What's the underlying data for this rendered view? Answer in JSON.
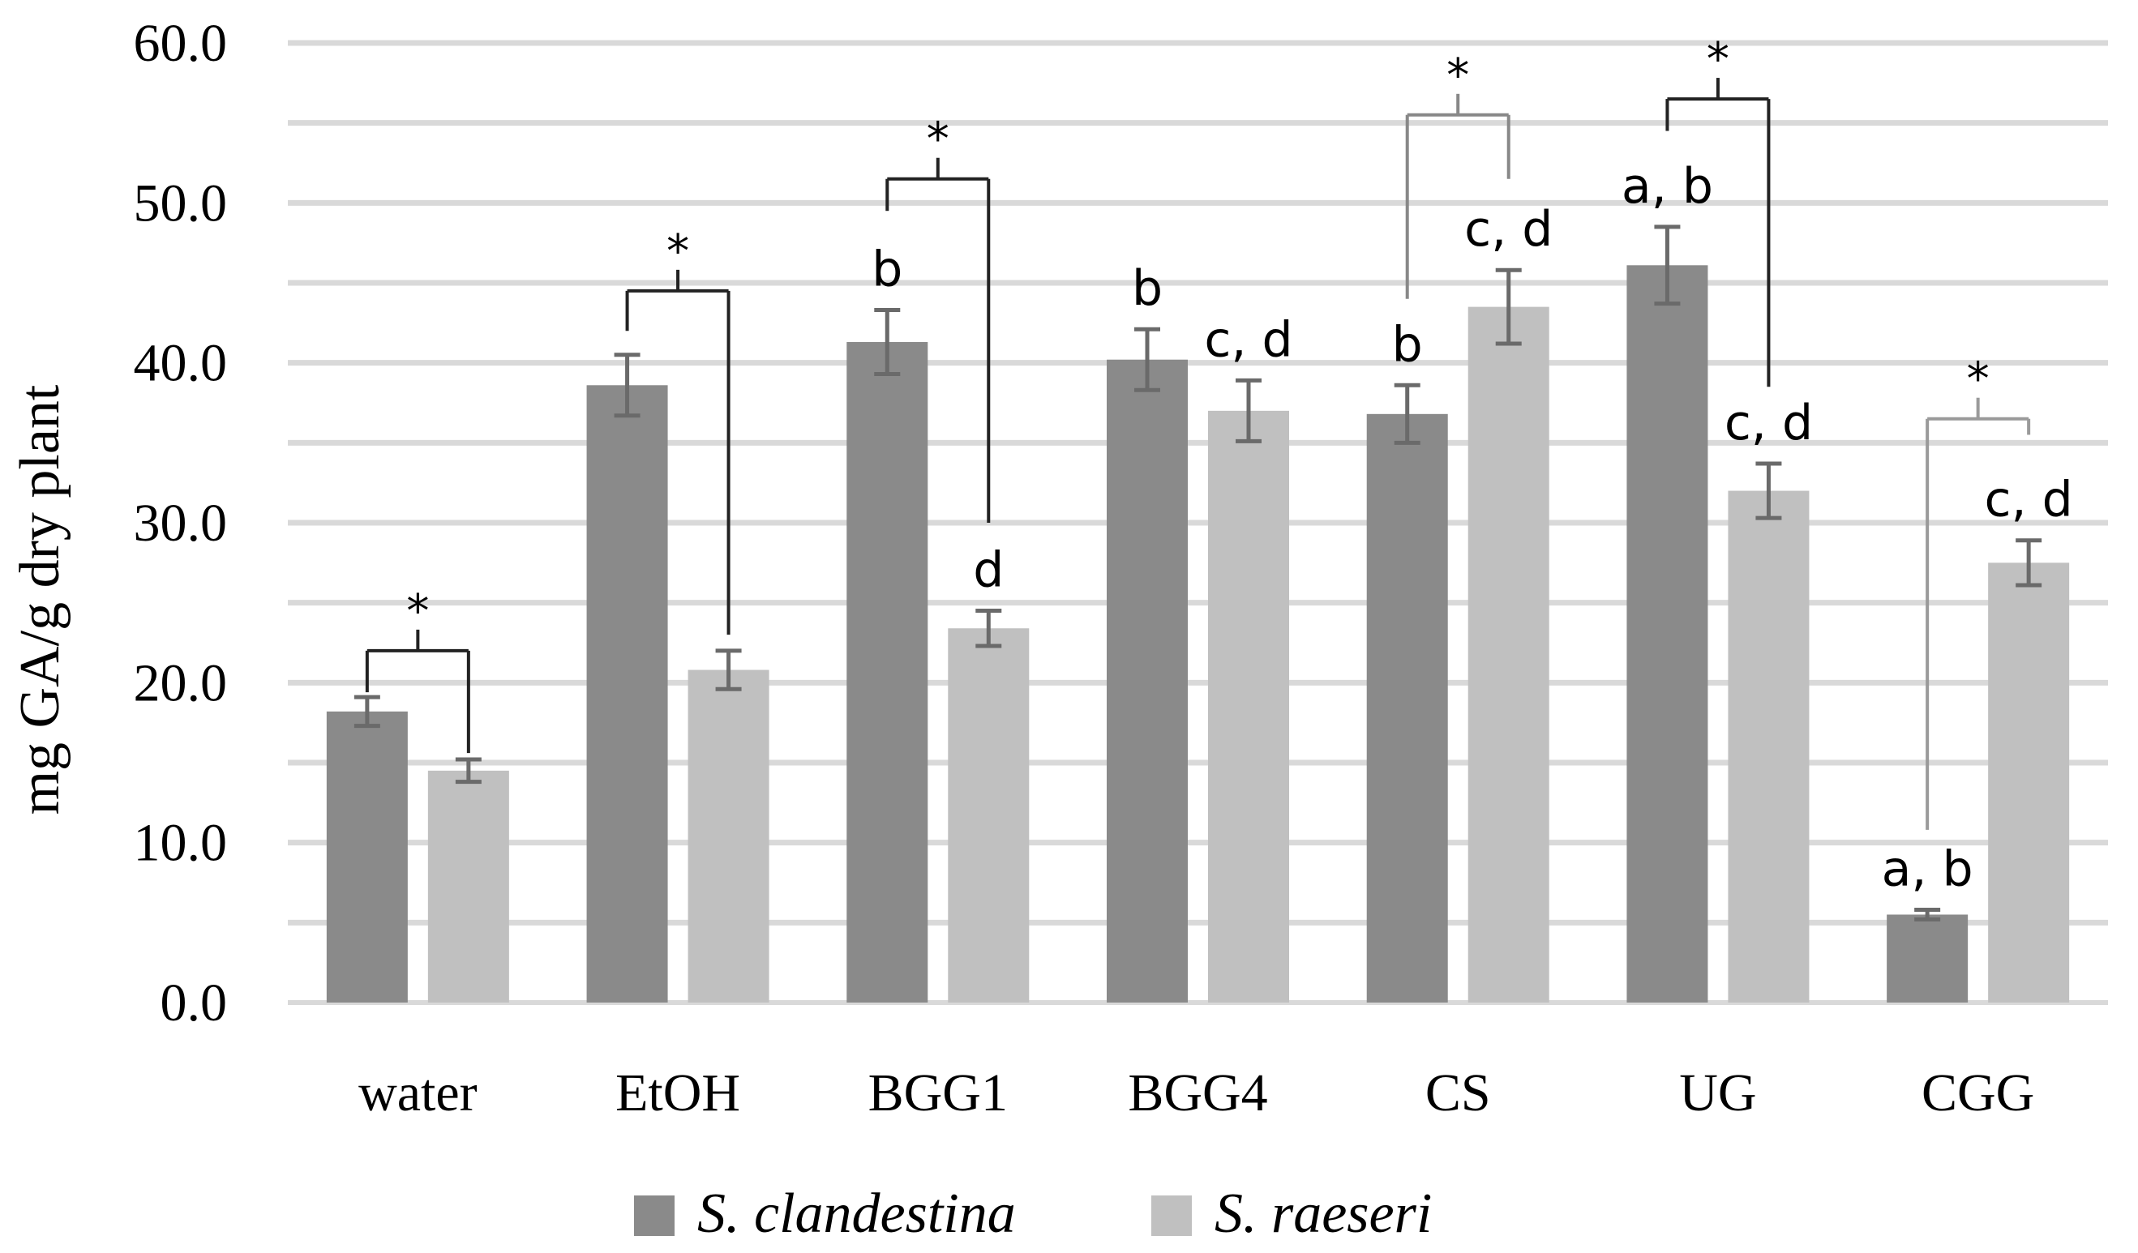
{
  "chart_data": {
    "type": "bar",
    "title": "",
    "xlabel": "",
    "ylabel": "mg GA/g dry plant",
    "ylim": [
      0,
      60
    ],
    "yticks": [
      "0.0",
      "10.0",
      "20.0",
      "30.0",
      "40.0",
      "50.0",
      "60.0"
    ],
    "grid": true,
    "legend_position": "bottom",
    "categories": [
      "water",
      "EtOH",
      "BGG1",
      "BGG4",
      "CS",
      "UG",
      "CGG"
    ],
    "series": [
      {
        "name": "S. clandestina",
        "color": "#8a8a8a",
        "values": [
          18.2,
          38.6,
          41.3,
          40.2,
          36.8,
          46.1,
          5.5
        ],
        "errors": [
          0.9,
          1.9,
          2.0,
          1.9,
          1.8,
          2.4,
          0.3
        ],
        "letters": [
          "",
          "",
          "b",
          "b",
          "b",
          "a, b",
          "a, b"
        ]
      },
      {
        "name": "S. raeseri",
        "color": "#c0c0c0",
        "values": [
          14.5,
          20.8,
          23.4,
          37.0,
          43.5,
          32.0,
          27.5
        ],
        "errors": [
          0.7,
          1.2,
          1.1,
          1.9,
          2.3,
          1.7,
          1.4
        ],
        "letters": [
          "",
          "",
          "d",
          "c, d",
          "c, d",
          "c, d",
          "c, d"
        ]
      }
    ],
    "significance": [
      {
        "category": "water",
        "label": "*",
        "bar_top": 22,
        "left_end": 19.4,
        "right_end": 15.6,
        "color": "#222222"
      },
      {
        "category": "EtOH",
        "label": "*",
        "bar_top": 44.5,
        "left_end": 42.0,
        "right_end": 23.0,
        "color": "#222222"
      },
      {
        "category": "BGG1",
        "label": "*",
        "bar_top": 51.5,
        "left_end": 49.5,
        "right_end": 30.0,
        "color": "#222222"
      },
      {
        "category": "CS",
        "label": "*",
        "bar_top": 55.5,
        "left_end": 44.0,
        "right_end": 51.5,
        "color": "#888888"
      },
      {
        "category": "UG",
        "label": "*",
        "bar_top": 56.5,
        "left_end": 54.5,
        "right_end": 38.5,
        "color": "#222222"
      },
      {
        "category": "CGG",
        "label": "*",
        "bar_top": 36.5,
        "left_end": 10.8,
        "right_end": 35.5,
        "color": "#9a9a9a"
      }
    ]
  }
}
